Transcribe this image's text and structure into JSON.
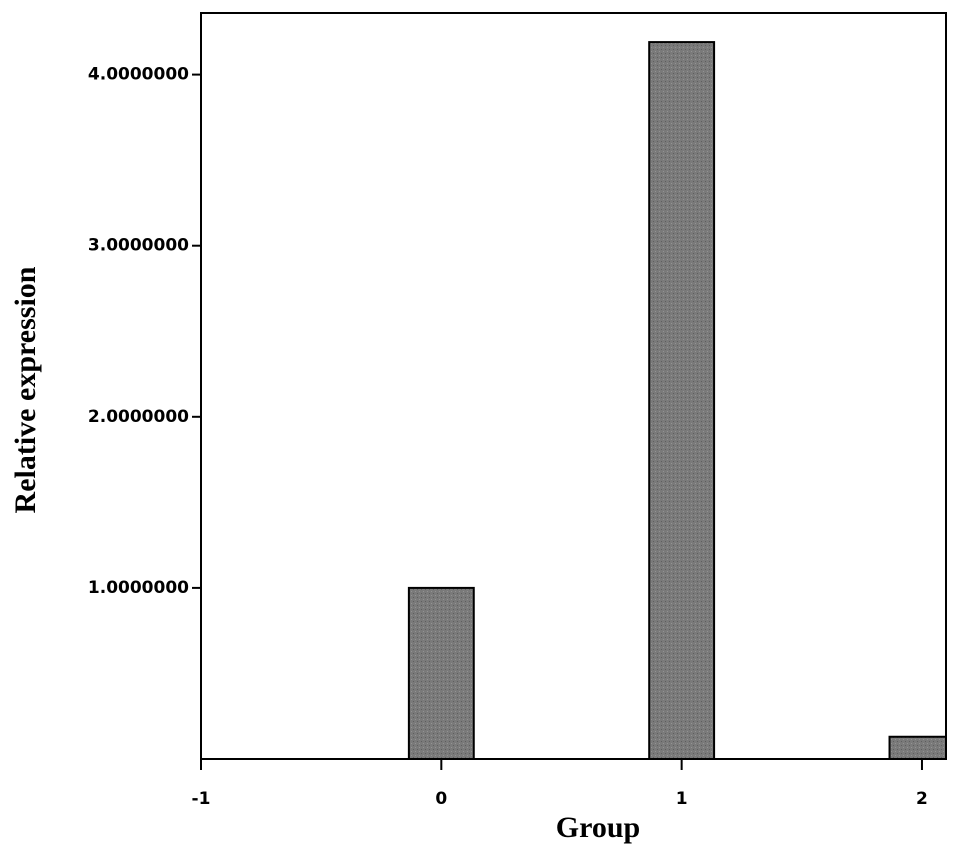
{
  "chart_data": {
    "type": "bar",
    "x_label": "Group",
    "y_label": "Relative expression",
    "x": [
      0,
      1,
      2
    ],
    "values": [
      1.0,
      4.19,
      0.13
    ],
    "color": "#7a7a7a",
    "xlim": [
      -1,
      2.1
    ],
    "xticks": [
      -1,
      0,
      1,
      2
    ],
    "ylim": [
      0,
      4.36
    ],
    "yticks": [
      {
        "value": 1,
        "label": "1.0000000"
      },
      {
        "value": 2,
        "label": "2.0000000"
      },
      {
        "value": 3,
        "label": "3.0000000"
      },
      {
        "value": 4,
        "label": "4.0000000"
      }
    ],
    "grid": false
  }
}
